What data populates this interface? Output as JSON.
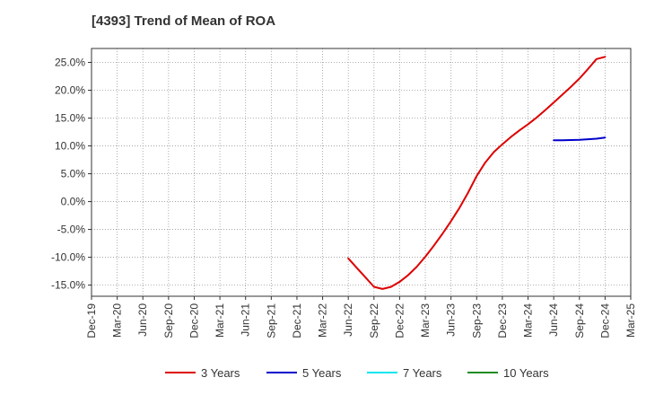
{
  "chart_data": {
    "type": "line",
    "title": "[4393]  Trend of Mean of ROA",
    "xlabel": "",
    "ylabel": "",
    "x_ticks": [
      "Dec-19",
      "Mar-20",
      "Jun-20",
      "Sep-20",
      "Dec-20",
      "Mar-21",
      "Jun-21",
      "Sep-21",
      "Dec-21",
      "Mar-22",
      "Jun-22",
      "Sep-22",
      "Dec-22",
      "Mar-23",
      "Jun-23",
      "Sep-23",
      "Dec-23",
      "Mar-24",
      "Jun-24",
      "Sep-24",
      "Dec-24",
      "Mar-25"
    ],
    "y_ticks": [
      {
        "value": 25,
        "label": "25.0%"
      },
      {
        "value": 20,
        "label": "20.0%"
      },
      {
        "value": 15,
        "label": "15.0%"
      },
      {
        "value": 10,
        "label": "10.0%"
      },
      {
        "value": 5,
        "label": "5.0%"
      },
      {
        "value": 0,
        "label": "0.0%"
      },
      {
        "value": -5,
        "label": "-5.0%"
      },
      {
        "value": -10,
        "label": "-10.0%"
      },
      {
        "value": -15,
        "label": "-15.0%"
      }
    ],
    "ylim": [
      -17,
      27.5
    ],
    "grid": true,
    "legend_position": "bottom",
    "series": [
      {
        "name": "3 Years",
        "color": "#dd0000",
        "points": [
          [
            "Jun-22",
            -10.2
          ],
          [
            "Jul-22",
            -11.9
          ],
          [
            "Aug-22",
            -13.6
          ],
          [
            "Sep-22",
            -15.3
          ],
          [
            "Oct-22",
            -15.7
          ],
          [
            "Nov-22",
            -15.3
          ],
          [
            "Dec-22",
            -14.4
          ],
          [
            "Jan-23",
            -13.2
          ],
          [
            "Feb-23",
            -11.7
          ],
          [
            "Mar-23",
            -9.9
          ],
          [
            "Apr-23",
            -7.9
          ],
          [
            "May-23",
            -5.8
          ],
          [
            "Jun-23",
            -3.5
          ],
          [
            "Jul-23",
            -1.1
          ],
          [
            "Aug-23",
            1.6
          ],
          [
            "Sep-23",
            4.6
          ],
          [
            "Oct-23",
            7.0
          ],
          [
            "Nov-23",
            8.9
          ],
          [
            "Dec-23",
            10.3
          ],
          [
            "Jan-24",
            11.6
          ],
          [
            "Feb-24",
            12.8
          ],
          [
            "Mar-24",
            13.9
          ],
          [
            "Apr-24",
            15.1
          ],
          [
            "May-24",
            16.4
          ],
          [
            "Jun-24",
            17.8
          ],
          [
            "Jul-24",
            19.2
          ],
          [
            "Aug-24",
            20.6
          ],
          [
            "Sep-24",
            22.1
          ],
          [
            "Oct-24",
            23.8
          ],
          [
            "Nov-24",
            25.6
          ],
          [
            "Dec-24",
            26.0
          ]
        ]
      },
      {
        "name": "5 Years",
        "color": "#0000cc",
        "points": [
          [
            "Jun-24",
            11.0
          ],
          [
            "Jul-24",
            11.0
          ],
          [
            "Aug-24",
            11.05
          ],
          [
            "Sep-24",
            11.1
          ],
          [
            "Oct-24",
            11.2
          ],
          [
            "Nov-24",
            11.3
          ],
          [
            "Dec-24",
            11.5
          ]
        ]
      },
      {
        "name": "7 Years",
        "color": "#00e5ee",
        "points": []
      },
      {
        "name": "10 Years",
        "color": "#228b22",
        "points": []
      }
    ]
  }
}
